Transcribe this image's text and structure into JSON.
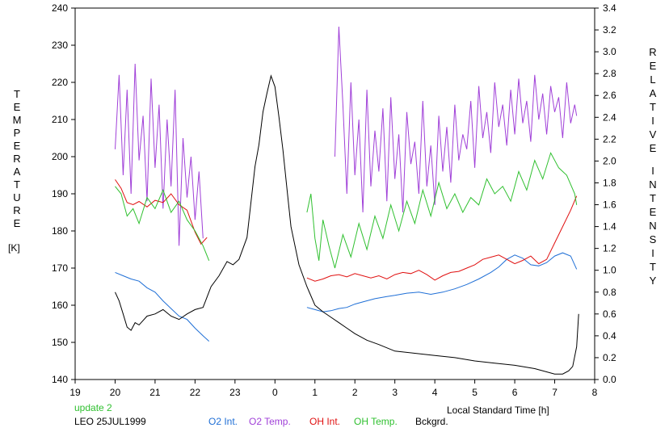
{
  "chart_data": {
    "type": "line",
    "title": "",
    "xlabel": "Local Standard Time [h]",
    "x_ticks": [
      "19",
      "20",
      "21",
      "22",
      "23",
      "0",
      "1",
      "2",
      "3",
      "4",
      "5",
      "6",
      "7",
      "8"
    ],
    "xlim": [
      19,
      32
    ],
    "left_axis": {
      "label_letters": [
        "T",
        "E",
        "M",
        "P",
        "E",
        "R",
        "A",
        "T",
        "U",
        "R",
        "E"
      ],
      "unit": "[K]",
      "ylim": [
        140,
        240
      ],
      "ticks": [
        "140",
        "150",
        "160",
        "170",
        "180",
        "190",
        "200",
        "210",
        "220",
        "230",
        "240"
      ]
    },
    "right_axis": {
      "label_letters_1": [
        "R",
        "E",
        "L",
        "A",
        "T",
        "I",
        "V",
        "E"
      ],
      "label_letters_2": [
        "I",
        "N",
        "T",
        "E",
        "N",
        "S",
        "I",
        "T",
        "Y"
      ],
      "ylim": [
        0.0,
        3.4
      ],
      "ticks": [
        "0.0",
        "0.2",
        "0.4",
        "0.6",
        "0.8",
        "1.0",
        "1.2",
        "1.4",
        "1.6",
        "1.8",
        "2.0",
        "2.2",
        "2.4",
        "2.6",
        "2.8",
        "3.0",
        "3.2",
        "3.4"
      ]
    },
    "series": [
      {
        "name": "O2 Int.",
        "axis": "right",
        "color": "#1f6fd6",
        "x": [
          20.0,
          20.2,
          20.4,
          20.6,
          20.8,
          21.0,
          21.2,
          21.4,
          21.6,
          21.8,
          22.0,
          22.2,
          22.35,
          24.8,
          25.0,
          25.2,
          25.4,
          25.6,
          25.8,
          26.0,
          26.2,
          26.5,
          26.8,
          27.0,
          27.3,
          27.6,
          27.9,
          28.2,
          28.5,
          28.8,
          29.1,
          29.4,
          29.6,
          29.8,
          30.0,
          30.2,
          30.4,
          30.6,
          30.8,
          31.0,
          31.2,
          31.4,
          31.55
        ],
        "y": [
          0.98,
          0.95,
          0.92,
          0.9,
          0.84,
          0.8,
          0.72,
          0.65,
          0.58,
          0.55,
          0.47,
          0.4,
          0.35,
          0.66,
          0.64,
          0.62,
          0.63,
          0.65,
          0.66,
          0.69,
          0.71,
          0.74,
          0.76,
          0.77,
          0.79,
          0.8,
          0.78,
          0.8,
          0.83,
          0.87,
          0.92,
          0.98,
          1.03,
          1.1,
          1.14,
          1.11,
          1.05,
          1.04,
          1.07,
          1.13,
          1.16,
          1.13,
          1.01
        ]
      },
      {
        "name": "O2 Temp.",
        "axis": "left",
        "color": "#a040d8",
        "x": [
          20.0,
          20.1,
          20.2,
          20.3,
          20.4,
          20.5,
          20.6,
          20.7,
          20.8,
          20.9,
          21.0,
          21.1,
          21.2,
          21.3,
          21.4,
          21.5,
          21.6,
          21.7,
          21.8,
          21.9,
          22.0,
          22.1,
          22.2,
          25.5,
          25.6,
          25.7,
          25.8,
          25.9,
          26.0,
          26.1,
          26.2,
          26.3,
          26.4,
          26.5,
          26.6,
          26.7,
          26.8,
          26.9,
          27.0,
          27.1,
          27.2,
          27.3,
          27.4,
          27.5,
          27.6,
          27.7,
          27.8,
          27.9,
          28.0,
          28.1,
          28.2,
          28.3,
          28.4,
          28.5,
          28.6,
          28.7,
          28.8,
          28.9,
          29.0,
          29.1,
          29.2,
          29.3,
          29.4,
          29.5,
          29.6,
          29.7,
          29.8,
          29.9,
          30.0,
          30.1,
          30.2,
          30.3,
          30.4,
          30.5,
          30.6,
          30.7,
          30.8,
          30.9,
          31.0,
          31.1,
          31.2,
          31.3,
          31.4,
          31.5,
          31.55
        ],
        "y": [
          202,
          222,
          195,
          218,
          190,
          225,
          199,
          211,
          188,
          221,
          197,
          214,
          186,
          210,
          192,
          218,
          176,
          205,
          189,
          200,
          183,
          196,
          178,
          200,
          235,
          214,
          190,
          220,
          195,
          210,
          185,
          218,
          192,
          207,
          196,
          213,
          188,
          216,
          194,
          206,
          185,
          212,
          198,
          204,
          190,
          215,
          192,
          203,
          187,
          211,
          196,
          208,
          193,
          214,
          199,
          206,
          202,
          215,
          197,
          219,
          205,
          212,
          201,
          220,
          208,
          214,
          203,
          218,
          206,
          221,
          209,
          215,
          204,
          222,
          210,
          217,
          206,
          219,
          212,
          216,
          205,
          220,
          209,
          214,
          211
        ]
      },
      {
        "name": "OH Int.",
        "axis": "right",
        "color": "#e01010",
        "x": [
          20.0,
          20.15,
          20.3,
          20.45,
          20.6,
          20.8,
          21.0,
          21.2,
          21.4,
          21.6,
          21.8,
          22.0,
          22.15,
          22.3,
          24.8,
          25.0,
          25.2,
          25.4,
          25.6,
          25.8,
          26.0,
          26.2,
          26.4,
          26.6,
          26.8,
          27.0,
          27.2,
          27.4,
          27.6,
          27.8,
          28.0,
          28.2,
          28.4,
          28.6,
          28.8,
          29.0,
          29.2,
          29.4,
          29.6,
          29.8,
          30.0,
          30.2,
          30.4,
          30.6,
          30.8,
          31.0,
          31.2,
          31.4,
          31.55
        ],
        "y": [
          1.83,
          1.75,
          1.62,
          1.6,
          1.63,
          1.58,
          1.64,
          1.62,
          1.7,
          1.6,
          1.55,
          1.35,
          1.24,
          1.3,
          0.93,
          0.9,
          0.92,
          0.95,
          0.96,
          0.94,
          0.97,
          0.95,
          0.93,
          0.95,
          0.92,
          0.96,
          0.98,
          0.97,
          1.0,
          0.96,
          0.91,
          0.95,
          0.98,
          0.99,
          1.02,
          1.05,
          1.1,
          1.12,
          1.14,
          1.1,
          1.06,
          1.09,
          1.13,
          1.06,
          1.1,
          1.25,
          1.4,
          1.55,
          1.68
        ]
      },
      {
        "name": "OH Temp.",
        "axis": "left",
        "color": "#30c030",
        "x": [
          20.0,
          20.15,
          20.3,
          20.45,
          20.6,
          20.8,
          21.0,
          21.2,
          21.4,
          21.6,
          21.8,
          22.0,
          22.2,
          22.35,
          24.8,
          24.9,
          25.0,
          25.1,
          25.2,
          25.35,
          25.5,
          25.7,
          25.9,
          26.1,
          26.3,
          26.5,
          26.7,
          26.9,
          27.1,
          27.3,
          27.5,
          27.7,
          27.9,
          28.1,
          28.3,
          28.5,
          28.7,
          28.9,
          29.1,
          29.3,
          29.5,
          29.7,
          29.9,
          30.1,
          30.3,
          30.5,
          30.7,
          30.9,
          31.1,
          31.3,
          31.5,
          31.55
        ],
        "y": [
          192,
          190,
          184,
          186,
          182,
          189,
          186,
          191,
          185,
          188,
          183,
          180,
          176,
          172,
          185,
          190,
          178,
          172,
          183,
          176,
          170,
          179,
          173,
          182,
          175,
          184,
          178,
          187,
          180,
          188,
          182,
          191,
          184,
          193,
          186,
          190,
          185,
          189,
          187,
          194,
          190,
          192,
          188,
          196,
          191,
          199,
          194,
          201,
          197,
          195,
          190,
          187
        ]
      },
      {
        "name": "Bckgrd.",
        "axis": "right",
        "color": "#000000",
        "x": [
          20.0,
          20.1,
          20.2,
          20.3,
          20.4,
          20.5,
          20.6,
          20.8,
          21.0,
          21.2,
          21.4,
          21.6,
          21.8,
          22.0,
          22.2,
          22.4,
          22.6,
          22.8,
          22.95,
          23.1,
          23.3,
          23.5,
          23.6,
          23.7,
          23.8,
          23.9,
          24.0,
          24.1,
          24.2,
          24.3,
          24.4,
          24.6,
          24.8,
          25.0,
          25.2,
          25.4,
          25.6,
          25.8,
          26.0,
          26.3,
          26.6,
          27.0,
          27.5,
          28.0,
          28.5,
          29.0,
          29.5,
          30.0,
          30.5,
          31.0,
          31.2,
          31.35,
          31.45,
          31.55,
          31.6
        ],
        "y": [
          0.8,
          0.72,
          0.6,
          0.48,
          0.45,
          0.52,
          0.5,
          0.58,
          0.6,
          0.64,
          0.58,
          0.55,
          0.6,
          0.64,
          0.66,
          0.85,
          0.95,
          1.08,
          1.05,
          1.1,
          1.3,
          1.95,
          2.15,
          2.45,
          2.62,
          2.78,
          2.68,
          2.4,
          2.1,
          1.75,
          1.4,
          1.05,
          0.85,
          0.68,
          0.62,
          0.57,
          0.52,
          0.47,
          0.42,
          0.36,
          0.32,
          0.26,
          0.24,
          0.22,
          0.2,
          0.17,
          0.15,
          0.13,
          0.1,
          0.05,
          0.05,
          0.08,
          0.12,
          0.3,
          0.6
        ]
      }
    ]
  },
  "footer": {
    "update": "update 2",
    "site_date": "LEO 25JUL1999",
    "legend": [
      {
        "label": "O2 Int.",
        "color": "#1f6fd6"
      },
      {
        "label": "O2 Temp.",
        "color": "#a040d8"
      },
      {
        "label": "OH Int.",
        "color": "#e01010"
      },
      {
        "label": "OH Temp.",
        "color": "#30c030"
      },
      {
        "label": "Bckgrd.",
        "color": "#000000"
      }
    ]
  }
}
